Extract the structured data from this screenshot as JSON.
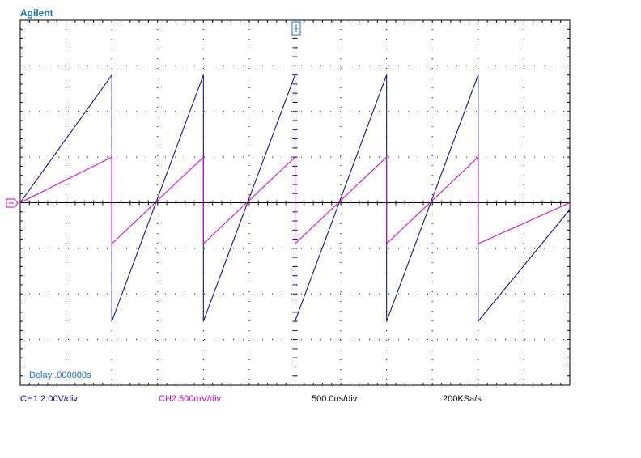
{
  "brand": "Agilent",
  "status": {
    "ch1_scale": "CH1 2.00V/div",
    "ch2_scale": "CH2 500mV/div",
    "timebase": "500.0us/div",
    "sample_rate": "200KSa/s"
  },
  "delay_readout": "Delay:.000000s",
  "colors": {
    "ch1": "#000080",
    "ch2": "#cc00cc",
    "grid": "#000000",
    "brand": "#1a6fc4",
    "ground_marker": "#cc00cc",
    "trigger_marker": "#1a6fc4"
  },
  "icons": {
    "ground_marker": "ground-reference-arrow-icon",
    "trigger_marker": "trigger-position-icon"
  },
  "chart_data": {
    "type": "line",
    "grid": true,
    "x_divisions": 12,
    "y_divisions": 8,
    "x_unit": "s",
    "xlim": [
      0,
      0.006
    ],
    "series": [
      {
        "name": "CH1 2.00V/div",
        "y_unit": "V",
        "ylim": [
          -8,
          8
        ],
        "x": [
          0,
          0.001,
          0.001,
          0.002,
          0.002,
          0.003,
          0.003,
          0.004,
          0.004,
          0.005,
          0.005,
          0.006
        ],
        "values": [
          0,
          5.6,
          -5.2,
          5.6,
          -5.2,
          5.6,
          -5.2,
          5.6,
          -5.2,
          5.6,
          -5.2,
          -0.3
        ]
      },
      {
        "name": "CH2 500mV/div",
        "y_unit": "V",
        "ylim": [
          -2,
          2
        ],
        "x": [
          0,
          0.001,
          0.001,
          0.002,
          0.002,
          0.003,
          0.003,
          0.004,
          0.004,
          0.005,
          0.005,
          0.006
        ],
        "values": [
          0,
          0.5,
          -0.45,
          0.5,
          -0.45,
          0.5,
          -0.45,
          0.5,
          -0.45,
          0.5,
          -0.45,
          0
        ]
      }
    ]
  }
}
